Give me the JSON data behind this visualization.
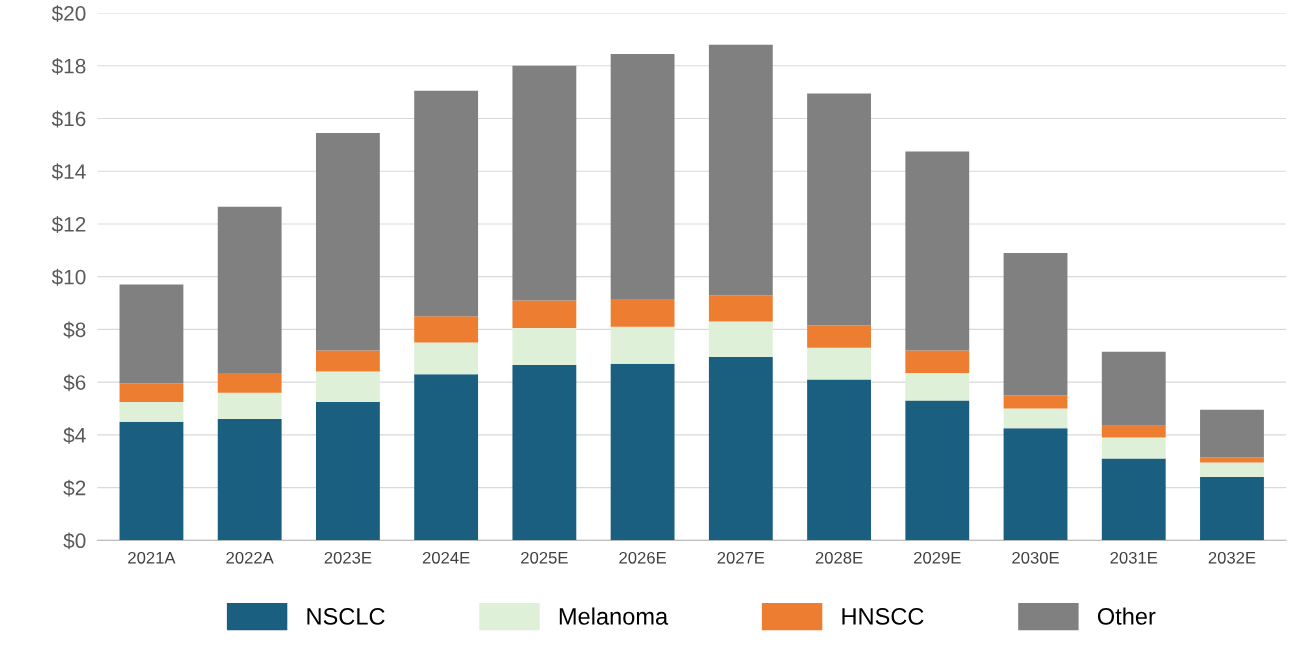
{
  "chart_data": {
    "type": "bar",
    "stacked": true,
    "categories": [
      "2021A",
      "2022A",
      "2023E",
      "2024E",
      "2025E",
      "2026E",
      "2027E",
      "2028E",
      "2029E",
      "2030E",
      "2031E",
      "2032E"
    ],
    "series": [
      {
        "name": "NSCLC",
        "color": "#1a5e80",
        "values": [
          4.5,
          4.6,
          5.25,
          6.3,
          6.65,
          6.7,
          6.95,
          6.1,
          5.3,
          4.25,
          3.1,
          2.4
        ]
      },
      {
        "name": "Melanoma",
        "color": "#dff0d8",
        "values": [
          0.75,
          1.0,
          1.15,
          1.2,
          1.4,
          1.4,
          1.35,
          1.2,
          1.05,
          0.75,
          0.8,
          0.55
        ]
      },
      {
        "name": "HNSCC",
        "color": "#ed7d31",
        "values": [
          0.7,
          0.75,
          0.8,
          1.0,
          1.05,
          1.05,
          1.0,
          0.85,
          0.85,
          0.5,
          0.45,
          0.2
        ]
      },
      {
        "name": "Other",
        "color": "#808080",
        "values": [
          3.75,
          6.3,
          8.25,
          8.55,
          8.9,
          9.3,
          9.5,
          8.8,
          7.55,
          5.4,
          2.8,
          1.8
        ]
      }
    ],
    "ylim": [
      0,
      20
    ],
    "yticks": [
      {
        "value": 0,
        "label": "$0"
      },
      {
        "value": 2,
        "label": "$2"
      },
      {
        "value": 4,
        "label": "$4"
      },
      {
        "value": 6,
        "label": "$6"
      },
      {
        "value": 8,
        "label": "$8"
      },
      {
        "value": 10,
        "label": "$10"
      },
      {
        "value": 12,
        "label": "$12"
      },
      {
        "value": 14,
        "label": "$14"
      },
      {
        "value": 16,
        "label": "$16"
      },
      {
        "value": 18,
        "label": "$18"
      },
      {
        "value": 20,
        "label": "$20"
      }
    ],
    "grid": "y",
    "legend": "bottom"
  }
}
